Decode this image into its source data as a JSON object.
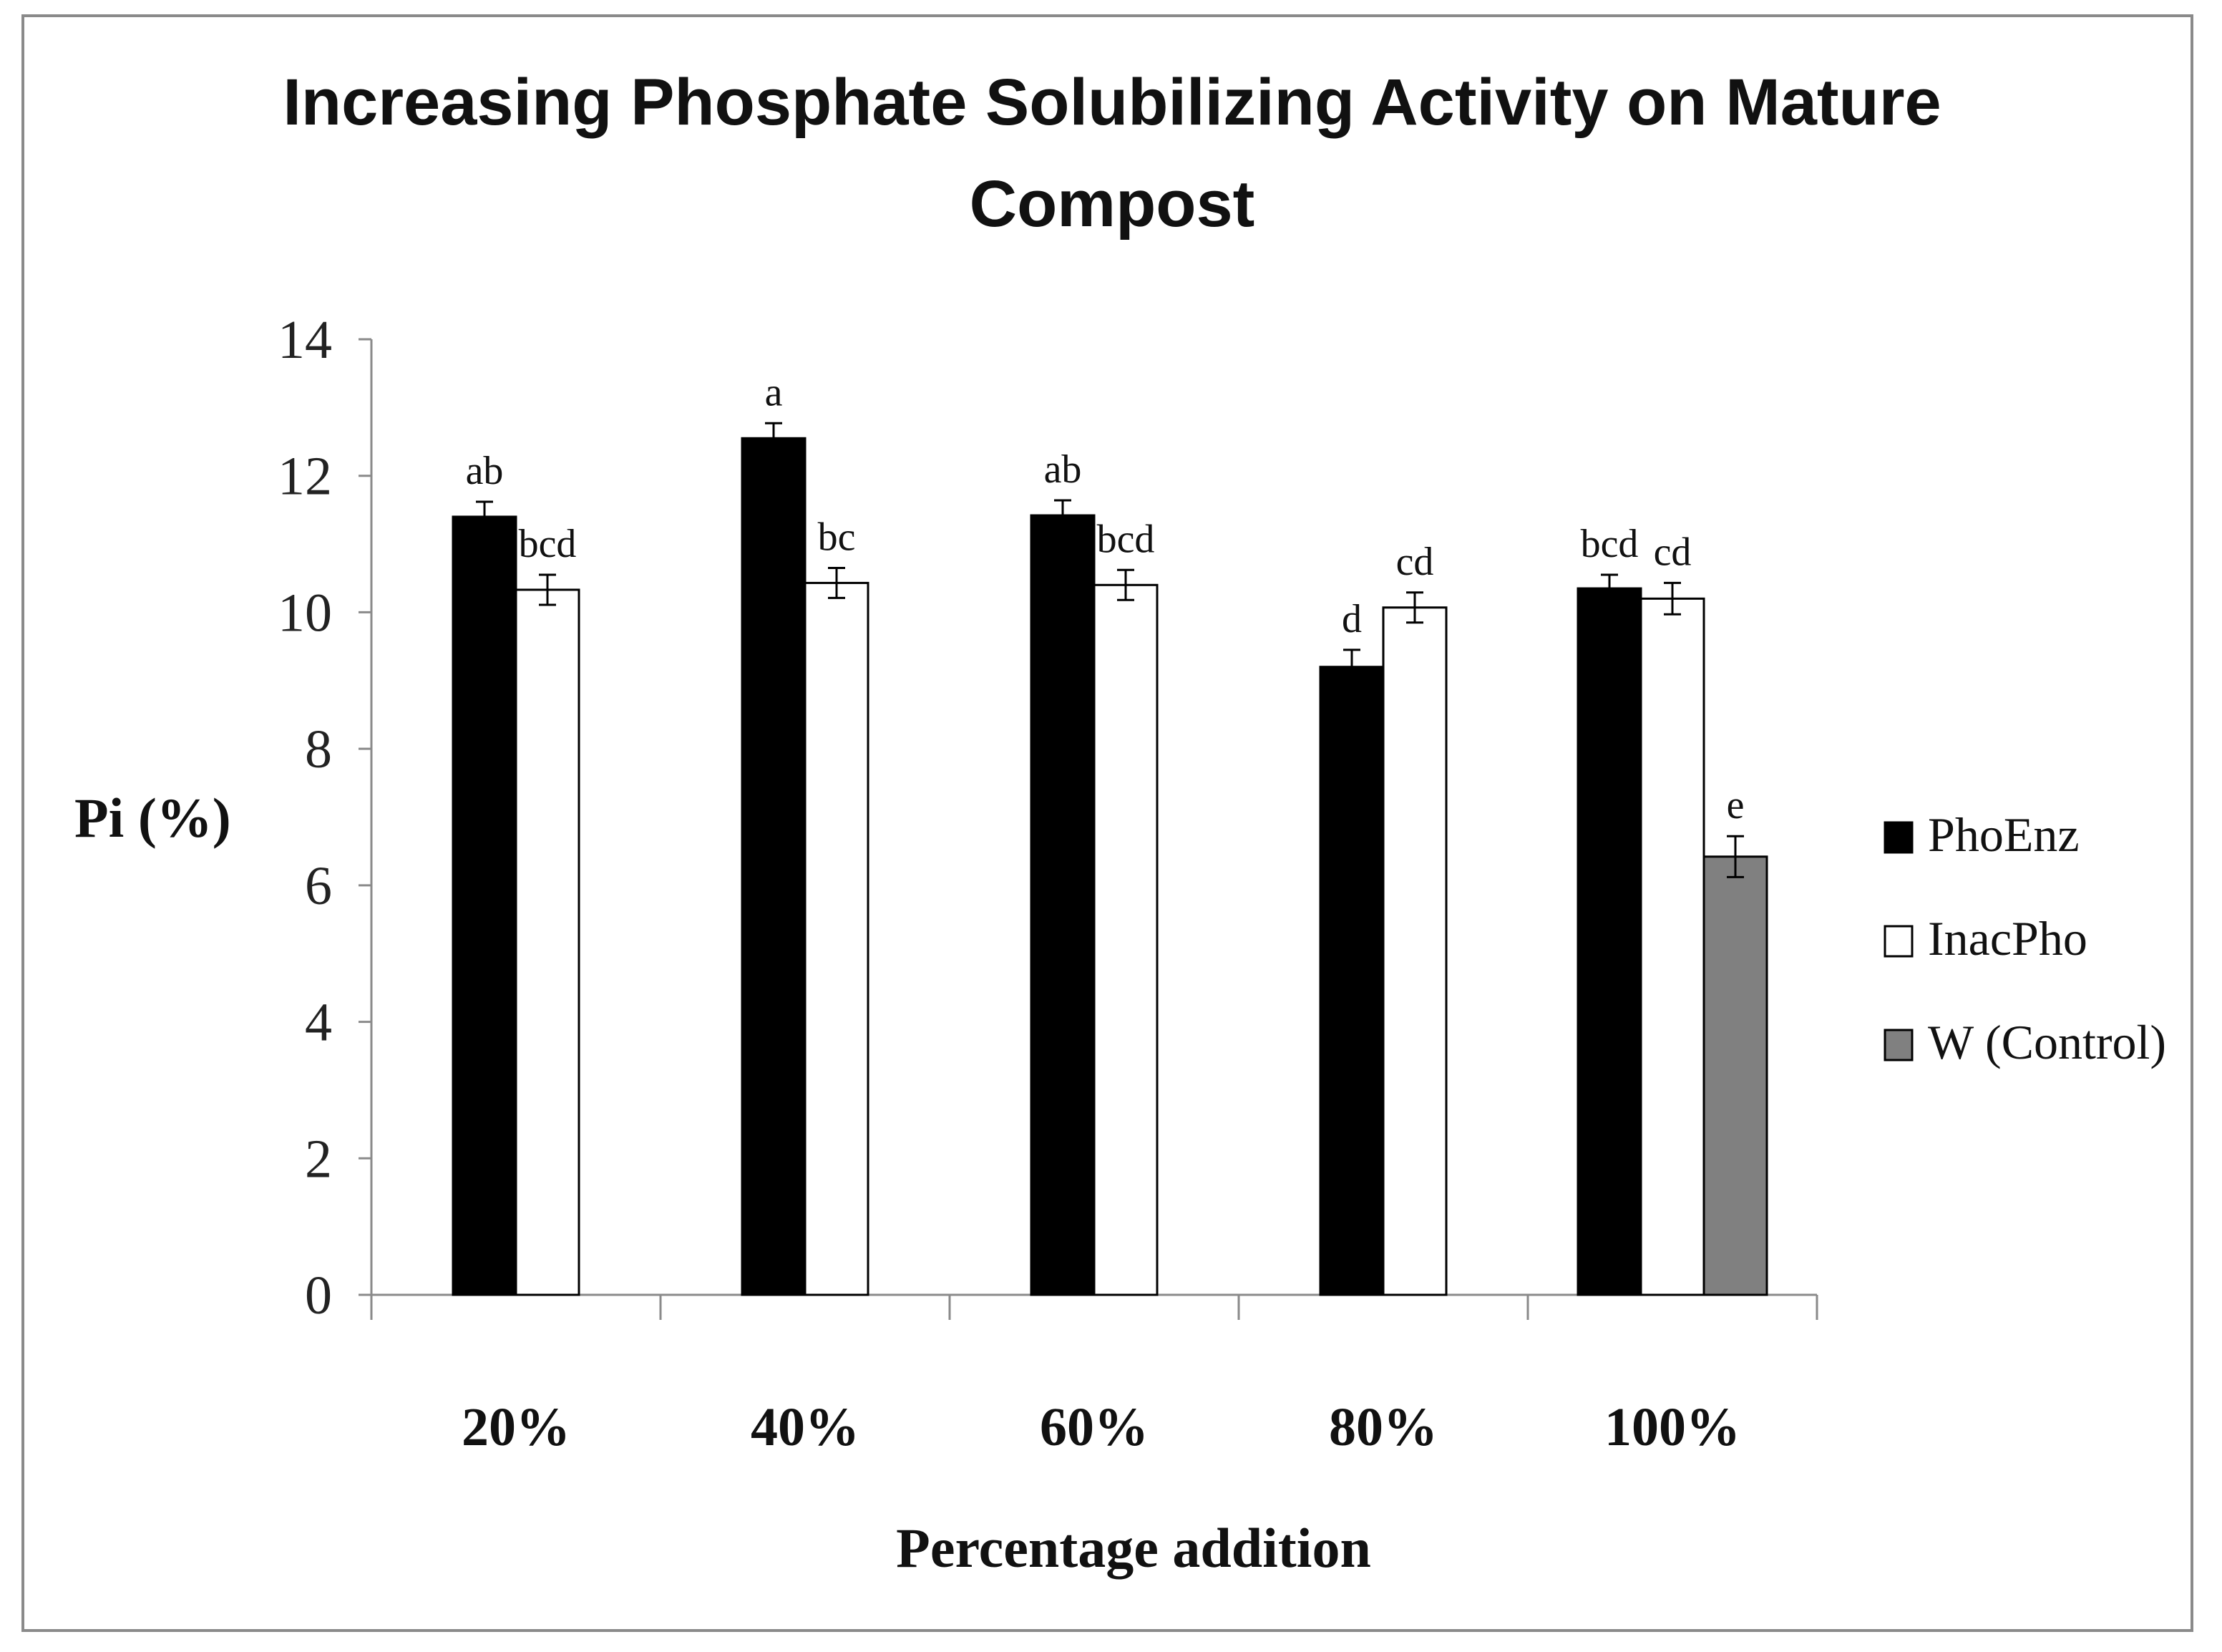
{
  "chart_data": {
    "type": "bar",
    "title": "Increasing Phosphate Solubilizing Activity on Mature Compost",
    "xlabel": "Percentage addition",
    "ylabel": "Pi (%)",
    "ylim": [
      0,
      14
    ],
    "yticks": [
      0,
      2,
      4,
      6,
      8,
      10,
      12,
      14
    ],
    "categories": [
      "20%",
      "40%",
      "60%",
      "80%",
      "100%"
    ],
    "legend_position": "right",
    "grid": false,
    "series": [
      {
        "name": "PhoEnz",
        "color": "#000000",
        "values": [
          11.4,
          12.55,
          11.42,
          9.2,
          10.35
        ],
        "errors": [
          0.22,
          0.22,
          0.22,
          0.25,
          0.2
        ],
        "labels": [
          "ab",
          "a",
          "ab",
          "d",
          "bcd"
        ]
      },
      {
        "name": "InacPho",
        "color": "#ffffff",
        "values": [
          10.33,
          10.43,
          10.4,
          10.07,
          10.2
        ],
        "errors": [
          0.22,
          0.22,
          0.22,
          0.22,
          0.23
        ],
        "labels": [
          "bcd",
          "bc",
          "bcd",
          "cd",
          "cd"
        ]
      },
      {
        "name": "W (Control)",
        "color": "#808080",
        "values": [
          null,
          null,
          null,
          null,
          6.42
        ],
        "errors": [
          null,
          null,
          null,
          null,
          0.3
        ],
        "labels": [
          null,
          null,
          null,
          null,
          "e"
        ]
      }
    ]
  }
}
